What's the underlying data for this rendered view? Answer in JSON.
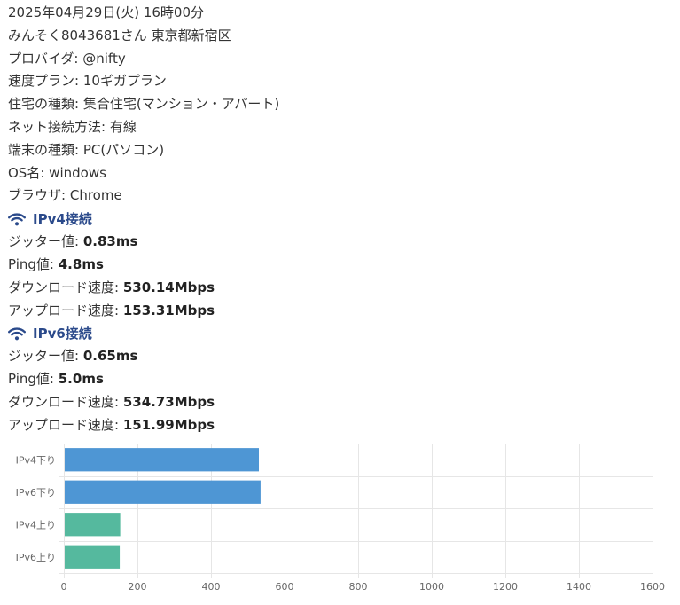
{
  "header": {
    "datetime": "2025年04月29日(火) 16時00分",
    "user_line": "みんそく8043681さん 東京都新宿区"
  },
  "info": [
    {
      "label": "プロバイダ:",
      "value": "@nifty"
    },
    {
      "label": "速度プラン:",
      "value": "10ギガプラン"
    },
    {
      "label": "住宅の種類:",
      "value": "集合住宅(マンション・アパート)"
    },
    {
      "label": "ネット接続方法:",
      "value": "有線"
    },
    {
      "label": "端末の種類:",
      "value": "PC(パソコン)"
    },
    {
      "label": "OS名:",
      "value": "windows"
    },
    {
      "label": "ブラウザ:",
      "value": "Chrome"
    }
  ],
  "ipv4": {
    "title": "IPv4接続",
    "icon": "wifi-icon",
    "rows": [
      {
        "label": "ジッター値:",
        "value": "0.83ms"
      },
      {
        "label": "Ping値:",
        "value": "4.8ms"
      },
      {
        "label": "ダウンロード速度:",
        "value": "530.14Mbps"
      },
      {
        "label": "アップロード速度:",
        "value": "153.31Mbps"
      }
    ]
  },
  "ipv6": {
    "title": "IPv6接続",
    "icon": "wifi-icon",
    "rows": [
      {
        "label": "ジッター値:",
        "value": "0.65ms"
      },
      {
        "label": "Ping値:",
        "value": "5.0ms"
      },
      {
        "label": "ダウンロード速度:",
        "value": "534.73Mbps"
      },
      {
        "label": "アップロード速度:",
        "value": "151.99Mbps"
      }
    ]
  },
  "colors": {
    "accent": "#2b4a8b",
    "download_bar": "#4e96d4",
    "upload_bar": "#55b99e",
    "grid": "#e6e6e6"
  },
  "chart_data": {
    "type": "bar",
    "orientation": "horizontal",
    "categories": [
      "IPv4下り",
      "IPv6下り",
      "IPv4上り",
      "IPv6上り"
    ],
    "values": [
      530.14,
      534.73,
      153.31,
      151.99
    ],
    "bar_colors": [
      "#4e96d4",
      "#4e96d4",
      "#55b99e",
      "#55b99e"
    ],
    "xlim": [
      0,
      1600
    ],
    "xticks": [
      0,
      200,
      400,
      600,
      800,
      1000,
      1200,
      1400,
      1600
    ],
    "grid": true,
    "title": "",
    "xlabel": "",
    "ylabel": ""
  }
}
